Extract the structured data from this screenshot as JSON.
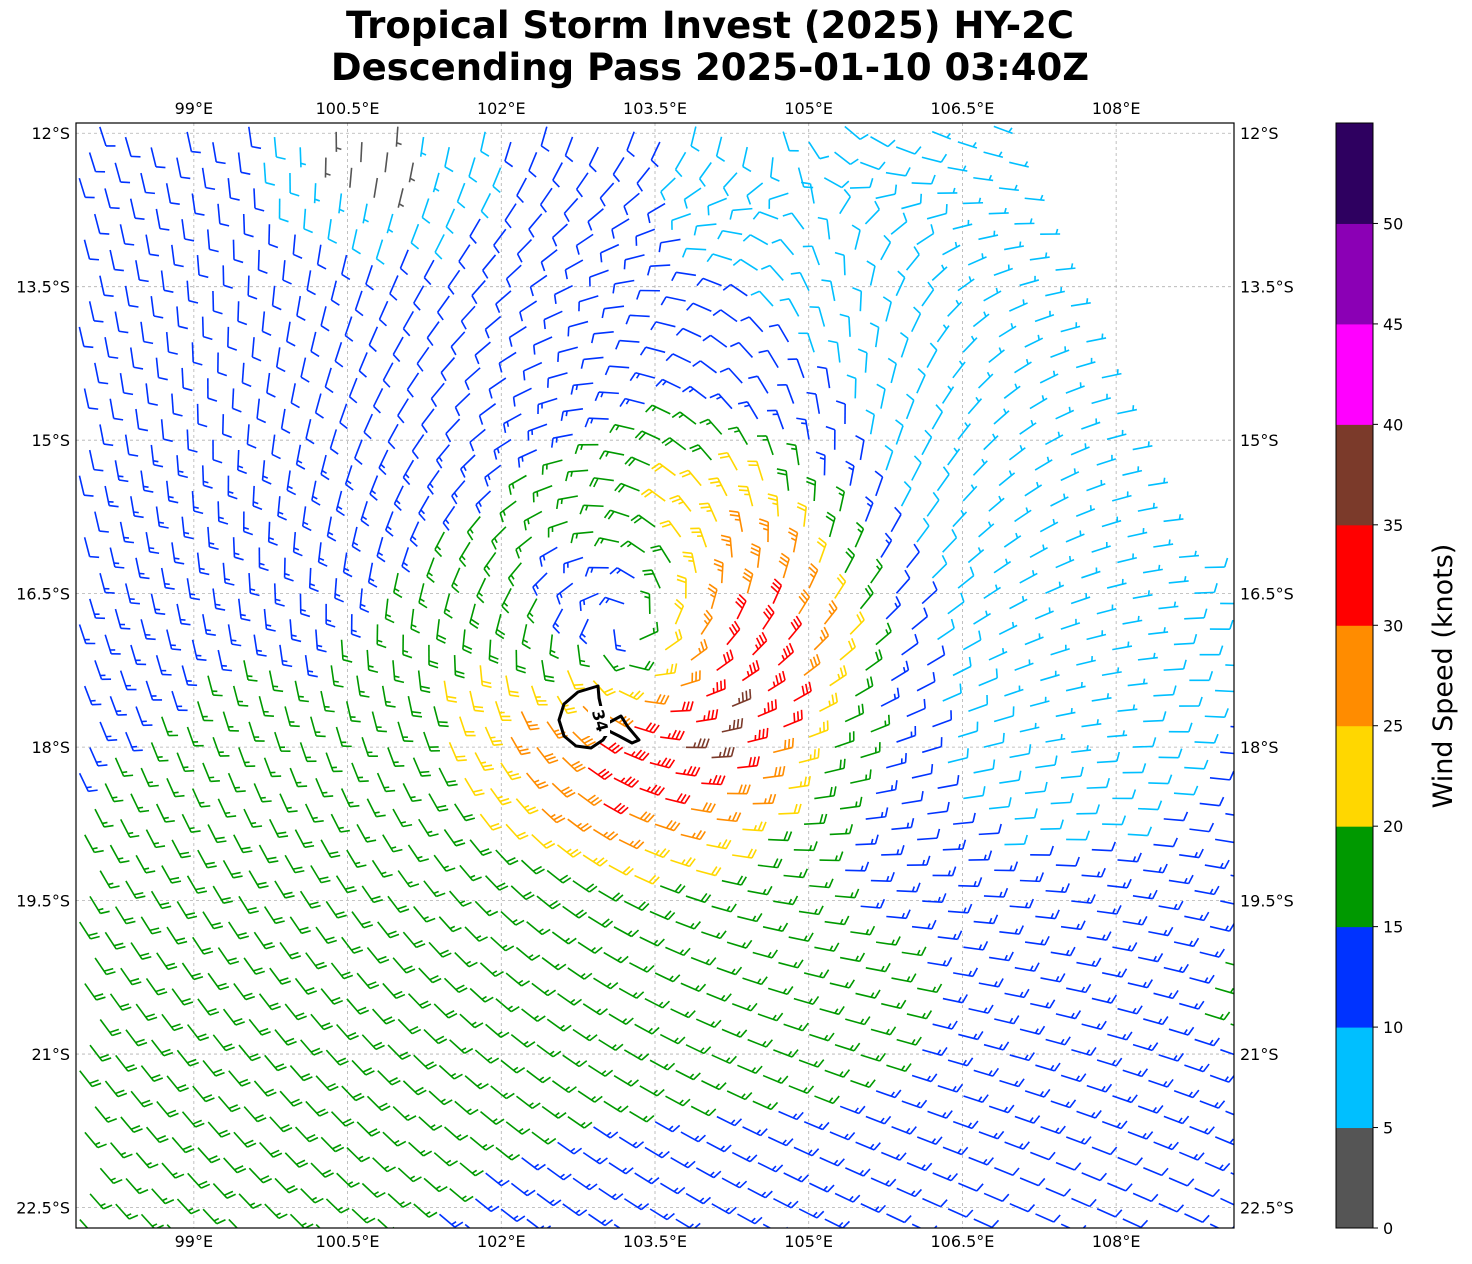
{
  "title": {
    "line1": "Tropical Storm Invest (2025) HY-2C",
    "line2": "Descending Pass 2025-01-10 03:40Z"
  },
  "map": {
    "lon_range": [
      97.85,
      109.15
    ],
    "lat_range": [
      -22.7,
      -11.9
    ],
    "lon_ticks": [
      "99°E",
      "100.5°E",
      "102°E",
      "103.5°E",
      "105°E",
      "106.5°E",
      "108°E"
    ],
    "lon_tick_values": [
      99,
      100.5,
      102,
      103.5,
      105,
      106.5,
      108
    ],
    "lat_ticks": [
      "12°S",
      "13.5°S",
      "15°S",
      "16.5°S",
      "18°S",
      "19.5°S",
      "21°S",
      "22.5°S"
    ],
    "lat_tick_values": [
      -12,
      -13.5,
      -15,
      -16.5,
      -18,
      -19.5,
      -21,
      -22.5
    ],
    "gridlines": true,
    "storm_center": {
      "lon": 103.2,
      "lat": -16.8
    },
    "wind_field": {
      "swath_edge_lon_top": 106.8,
      "swath_edge_lon_bottom": 109.15,
      "barb_spacing_deg": 0.27
    },
    "contour": {
      "label": "34",
      "wind_threshold_knots": 34,
      "color": "#000000"
    }
  },
  "colorbar": {
    "label": "Wind Speed (knots)",
    "bounds": [
      0,
      5,
      10,
      15,
      20,
      25,
      30,
      35,
      40,
      45,
      50,
      55
    ],
    "tick_values": [
      0,
      5,
      10,
      15,
      20,
      25,
      30,
      35,
      40,
      45,
      50
    ],
    "tick_labels": [
      "0",
      "5",
      "10",
      "15",
      "20",
      "25",
      "30",
      "35",
      "40",
      "45",
      "50"
    ],
    "colors": [
      "#555555",
      "#00bfff",
      "#0033ff",
      "#009900",
      "#ffd700",
      "#ff8c00",
      "#ff0000",
      "#7b3a2a",
      "#ff00ff",
      "#8b00b5",
      "#2e0060"
    ]
  }
}
